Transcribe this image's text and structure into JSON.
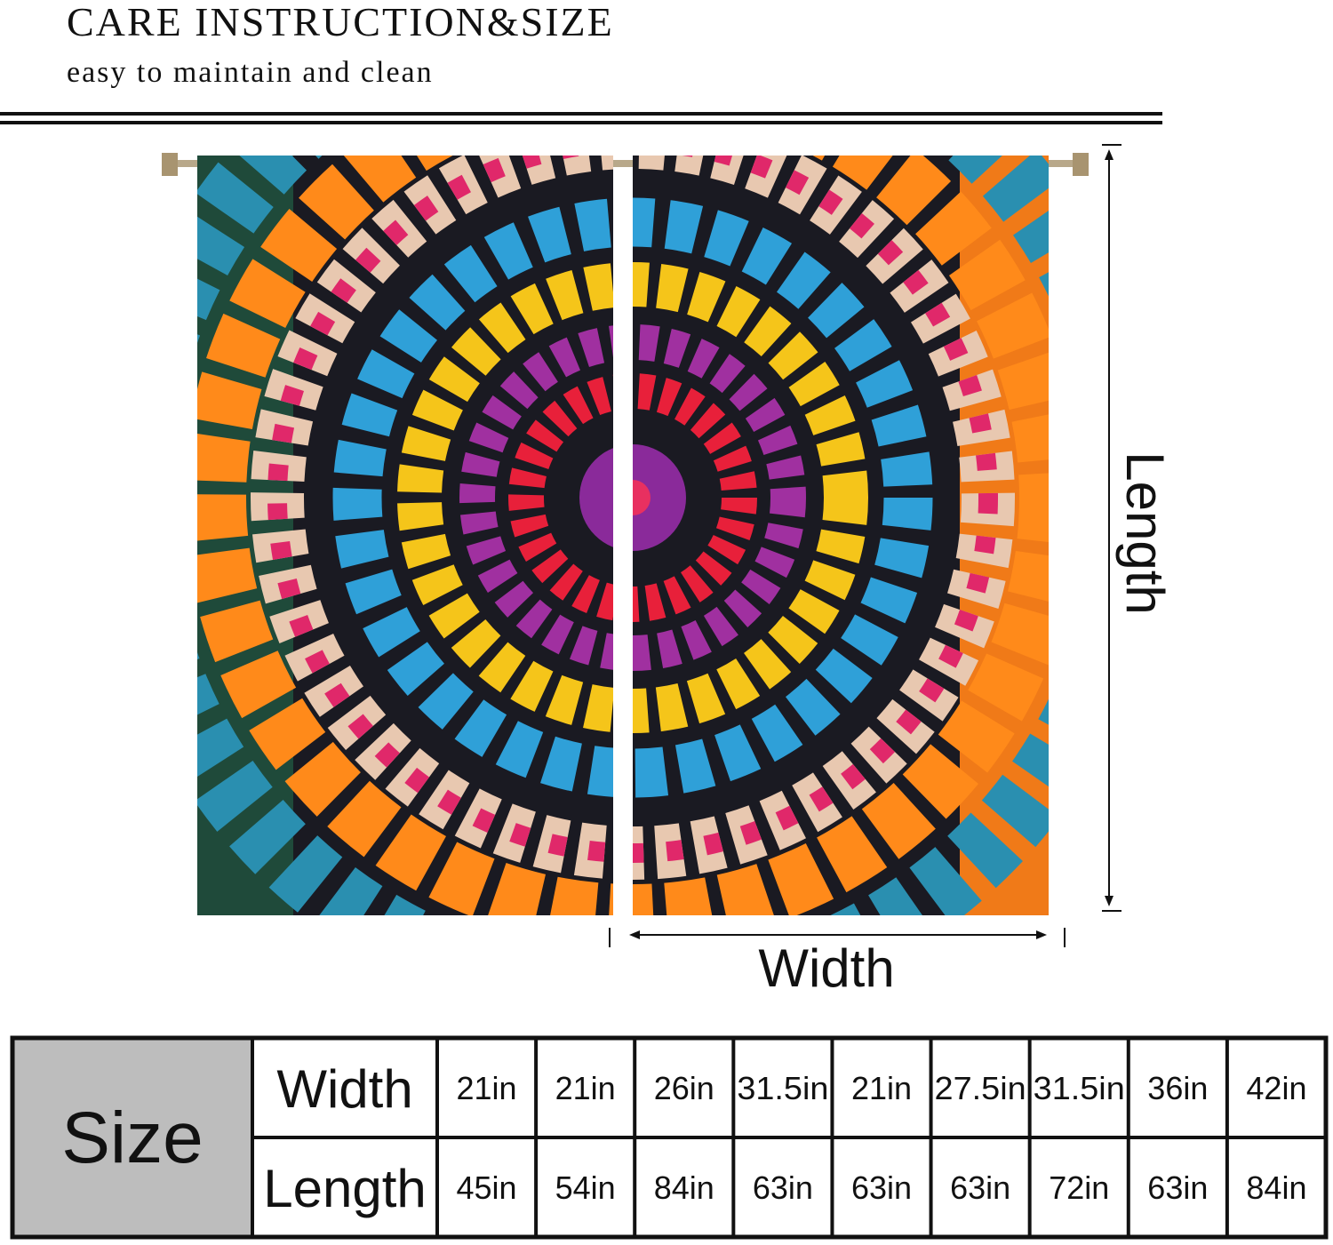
{
  "header": {
    "title": "CARE INSTRUCTION&SIZE",
    "subtitle": "easy to maintain and clean"
  },
  "diagram": {
    "length_label": "Length",
    "width_label": "Width"
  },
  "table": {
    "corner": "Size",
    "rows": [
      {
        "label": "Width",
        "cells": [
          "21in",
          "21in",
          "26in",
          "31.5in",
          "21in",
          "27.5in",
          "31.5in",
          "36in",
          "42in"
        ]
      },
      {
        "label": "Length",
        "cells": [
          "45in",
          "54in",
          "84in",
          "63in",
          "63in",
          "63in",
          "72in",
          "63in",
          "84in"
        ]
      }
    ]
  }
}
